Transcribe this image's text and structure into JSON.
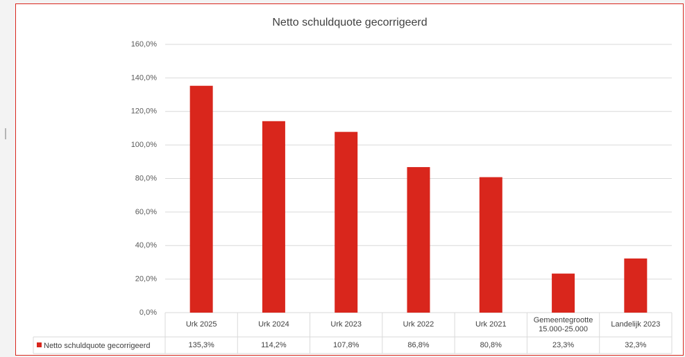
{
  "chart_data": {
    "type": "bar",
    "title": "Netto schuldquote gecorrigeerd",
    "categories": [
      "Urk 2025",
      "Urk 2024",
      "Urk 2023",
      "Urk 2022",
      "Urk 2021",
      "Gemeentegrootte 15.000-25.000",
      "Landelijk 2023"
    ],
    "series": [
      {
        "name": "Netto schuldquote gecorrigeerd",
        "color": "#d9261c",
        "values": [
          135.3,
          114.2,
          107.8,
          86.8,
          80.8,
          23.3,
          32.3
        ],
        "value_labels": [
          "135,3%",
          "114,2%",
          "107,8%",
          "86,8%",
          "80,8%",
          "23,3%",
          "32,3%"
        ]
      }
    ],
    "ylim": [
      0,
      160
    ],
    "yticks": [
      {
        "value": 0,
        "label": "0,0%"
      },
      {
        "value": 20,
        "label": "20,0%"
      },
      {
        "value": 40,
        "label": "40,0%"
      },
      {
        "value": 60,
        "label": "60,0%"
      },
      {
        "value": 80,
        "label": "80,0%"
      },
      {
        "value": 100,
        "label": "100,0%"
      },
      {
        "value": 120,
        "label": "120,0%"
      },
      {
        "value": 140,
        "label": "140,0%"
      },
      {
        "value": 160,
        "label": "160,0%"
      }
    ],
    "grid": true,
    "data_table": true
  }
}
